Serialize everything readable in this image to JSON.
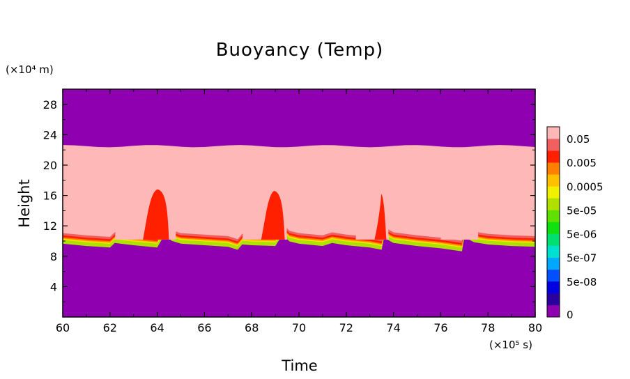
{
  "chart_data": {
    "type": "heatmap",
    "title": "Buoyancy (Temp)",
    "xlabel": "Time",
    "ylabel": "Height",
    "x_unit": "(×10⁵ s)",
    "y_unit": "(×10⁴ m)",
    "xlim": [
      60,
      80
    ],
    "ylim": [
      0,
      30
    ],
    "xticks": [
      "60",
      "62",
      "64",
      "66",
      "68",
      "70",
      "72",
      "74",
      "76",
      "78",
      "80"
    ],
    "yticks": [
      "4",
      "8",
      "12",
      "16",
      "20",
      "24",
      "28"
    ],
    "colorbar": {
      "levels": [
        "0",
        "5e-08",
        "5e-07",
        "5e-06",
        "5e-05",
        "0.0005",
        "0.005",
        "0.05"
      ],
      "colors": [
        "#8f00b0",
        "#2a009e",
        "#0000e0",
        "#0050ff",
        "#00a8ff",
        "#00e0d0",
        "#00e070",
        "#10e010",
        "#60e000",
        "#b0e000",
        "#f0f000",
        "#ffc000",
        "#ff8000",
        "#ff2000",
        "#f06060",
        "#ffb8b8"
      ]
    },
    "layers": {
      "background_color": "#8f00b0",
      "upper_top_y": 22.5,
      "inversion_base": [
        [
          60,
          9.8
        ],
        [
          61,
          9.5
        ],
        [
          62,
          9.3
        ],
        [
          62.2,
          9.9
        ],
        [
          63,
          9.6
        ],
        [
          64,
          9.3
        ],
        [
          64.35,
          11.2
        ],
        [
          64.6,
          10.2
        ],
        [
          65,
          9.8
        ],
        [
          66,
          9.6
        ],
        [
          67,
          9.4
        ],
        [
          67.4,
          9.0
        ],
        [
          67.6,
          9.7
        ],
        [
          68,
          9.6
        ],
        [
          69,
          9.5
        ],
        [
          69.3,
          11.0
        ],
        [
          69.6,
          10.1
        ],
        [
          70,
          9.8
        ],
        [
          71,
          9.5
        ],
        [
          71.4,
          9.9
        ],
        [
          72,
          9.6
        ],
        [
          73,
          9.3
        ],
        [
          73.5,
          9.0
        ],
        [
          73.6,
          10.6
        ],
        [
          74,
          9.9
        ],
        [
          75,
          9.5
        ],
        [
          76,
          9.2
        ],
        [
          76.9,
          8.8
        ],
        [
          77.0,
          10.7
        ],
        [
          77.4,
          10.0
        ],
        [
          78,
          9.7
        ],
        [
          79,
          9.5
        ],
        [
          80,
          9.4
        ]
      ],
      "upper_region_value": "0.05",
      "plumes": [
        {
          "x0": 62.2,
          "x1": 64.8,
          "top": 18.0,
          "value": "0.05"
        },
        {
          "x0": 63.4,
          "x1": 64.5,
          "top": 16.8,
          "value": "0.005"
        },
        {
          "x0": 67.6,
          "x1": 69.5,
          "top": 18.2,
          "value": "0.05"
        },
        {
          "x0": 68.4,
          "x1": 69.4,
          "top": 16.6,
          "value": "0.005"
        },
        {
          "x0": 72.4,
          "x1": 73.8,
          "top": 18.4,
          "value": "0.05"
        },
        {
          "x0": 73.2,
          "x1": 73.7,
          "top": 16.2,
          "value": "0.005"
        },
        {
          "x0": 76.0,
          "x1": 77.6,
          "top": 16.8,
          "value": "0.05"
        }
      ]
    }
  }
}
